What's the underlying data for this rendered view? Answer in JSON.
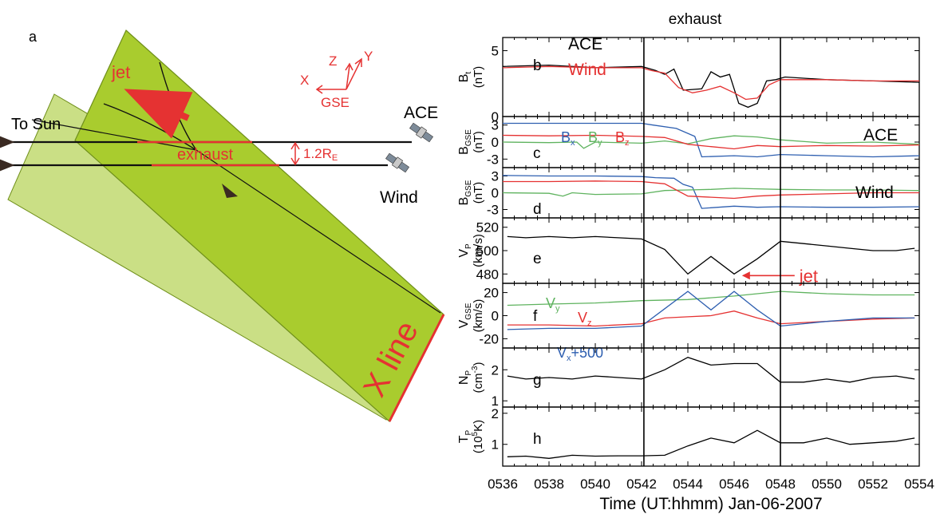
{
  "colors": {
    "black": "#000000",
    "red": "#e53232",
    "green": "#5fb35f",
    "blue": "#2e5fb0",
    "sheet": "#a9cc2e"
  },
  "schematic": {
    "panel_label": "a",
    "jet_label": "jet",
    "to_sun_label": "To Sun",
    "exhaust_label": "exhaust",
    "separation_label": "1.2R",
    "separation_sub": "E",
    "ace_label": "ACE",
    "wind_label": "Wind",
    "xline_label": "X line",
    "gse": {
      "x": "X",
      "y": "Y",
      "z": "Z",
      "name": "GSE"
    },
    "spacecraft_icons": [
      "satellite-icon",
      "satellite-icon"
    ]
  },
  "chart_data": {
    "type": "line",
    "title": "exhaust",
    "xlabel": "Time (UT:hhmm) Jan-06-2007",
    "x_ticks": [
      "0536",
      "0538",
      "0540",
      "0542",
      "0544",
      "0546",
      "0548",
      "0550",
      "0552",
      "0554"
    ],
    "xlim": [
      "05:36",
      "05:54"
    ],
    "exhaust_boundaries": [
      "05:42.1",
      "05:48.0"
    ],
    "panels": [
      {
        "id": "b",
        "ylabel": "B",
        "ylabel_sub": "t",
        "unit": "(nT)",
        "ylim": [
          0,
          6
        ],
        "yticks": [
          "5",
          "0"
        ],
        "labels": [
          "ACE",
          "Wind"
        ],
        "series": [
          {
            "name": "ACE",
            "color": "#000000",
            "x": [
              36.0,
              38.0,
              40.0,
              42.0,
              42.2,
              42.6,
              43.0,
              43.4,
              43.8,
              44.6,
              45.0,
              45.4,
              45.8,
              46.2,
              46.6,
              47.0,
              47.4,
              47.8,
              48.2,
              50.0,
              52.0,
              54.0
            ],
            "values": [
              3.8,
              3.9,
              3.7,
              3.8,
              3.7,
              3.5,
              3.2,
              3.6,
              2.0,
              2.1,
              3.4,
              3.0,
              3.2,
              1.0,
              0.7,
              1.0,
              2.7,
              2.8,
              3.0,
              2.8,
              2.7,
              2.6
            ]
          },
          {
            "name": "Wind",
            "color": "#e53232",
            "x": [
              36.0,
              38.0,
              40.0,
              42.0,
              42.4,
              43.0,
              43.6,
              44.2,
              44.8,
              45.4,
              46.0,
              46.5,
              47.0,
              47.5,
              48.0,
              50.0,
              52.0,
              54.0
            ],
            "values": [
              3.7,
              3.8,
              3.7,
              3.7,
              3.5,
              3.3,
              2.2,
              1.8,
              2.0,
              2.3,
              1.8,
              1.3,
              1.4,
              2.4,
              2.8,
              2.8,
              2.7,
              2.7
            ]
          }
        ]
      },
      {
        "id": "c",
        "ylabel": "B",
        "ylabel_sub": "GSE",
        "unit": "(nT)",
        "ylim": [
          -4.5,
          4.5
        ],
        "yticks": [
          "3",
          "0",
          "-3"
        ],
        "labels": [
          "ACE"
        ],
        "legend": [
          {
            "text": "B",
            "sub": "x",
            "color": "#2e5fb0"
          },
          {
            "text": "B",
            "sub": "y",
            "color": "#5fb35f"
          },
          {
            "text": "B",
            "sub": "z",
            "color": "#e53232"
          }
        ],
        "series": [
          {
            "name": "Bx",
            "color": "#2e5fb0",
            "x": [
              36,
              38,
              40,
              42,
              42.5,
              43.5,
              44.3,
              44.6,
              46,
              47,
              48,
              50,
              52,
              54
            ],
            "values": [
              3.3,
              3.3,
              3.3,
              3.3,
              3.0,
              2.4,
              1.0,
              -2.6,
              -2.4,
              -2.6,
              -2.2,
              -2.4,
              -2.6,
              -2.4
            ]
          },
          {
            "name": "By",
            "color": "#5fb35f",
            "x": [
              36,
              38,
              39.2,
              39.5,
              40,
              42,
              43,
              44,
              45,
              46,
              47,
              48,
              50,
              52,
              54
            ],
            "values": [
              0.0,
              -0.1,
              0.0,
              -1.1,
              0.0,
              -0.2,
              0.2,
              -0.3,
              0.6,
              1.1,
              0.9,
              0.4,
              -0.2,
              0.0,
              -0.4
            ]
          },
          {
            "name": "Bz",
            "color": "#e53232",
            "x": [
              36,
              38,
              40,
              42,
              43,
              44,
              45,
              46,
              47,
              48,
              50,
              52,
              54
            ],
            "values": [
              1.2,
              1.1,
              1.2,
              1.0,
              0.8,
              -0.4,
              -0.8,
              -1.2,
              -0.6,
              -0.8,
              -0.6,
              -0.7,
              -0.5
            ]
          }
        ]
      },
      {
        "id": "d",
        "ylabel": "B",
        "ylabel_sub": "GSE",
        "unit": "(nT)",
        "ylim": [
          -4.5,
          4.5
        ],
        "yticks": [
          "3",
          "0",
          "-3"
        ],
        "labels": [
          "Wind"
        ],
        "series": [
          {
            "name": "Bx",
            "color": "#2e5fb0",
            "x": [
              36,
              38,
              40,
              42,
              42.6,
              43.4,
              43.8,
              44.2,
              44.6,
              46,
              47,
              48,
              50,
              52,
              54
            ],
            "values": [
              3.1,
              3.0,
              3.0,
              2.9,
              2.7,
              2.6,
              1.5,
              1.0,
              -2.8,
              -2.4,
              -2.6,
              -2.5,
              -2.6,
              -2.6,
              -2.5
            ]
          },
          {
            "name": "By",
            "color": "#5fb35f",
            "x": [
              36,
              38,
              38.6,
              39,
              40,
              42,
              43,
              44,
              45,
              46,
              47,
              48,
              50,
              52,
              54
            ],
            "values": [
              0.0,
              -0.1,
              -0.6,
              0.0,
              -0.3,
              -0.2,
              0.4,
              0.5,
              0.6,
              0.8,
              0.7,
              0.6,
              0.5,
              0.5,
              0.4
            ]
          },
          {
            "name": "Bz",
            "color": "#e53232",
            "x": [
              36,
              38,
              40,
              42,
              43,
              44,
              45,
              46,
              47,
              48,
              50,
              52,
              54
            ],
            "values": [
              2.0,
              2.0,
              2.1,
              2.0,
              1.6,
              -0.6,
              -0.8,
              -1.0,
              -0.6,
              -0.4,
              -0.2,
              0.0,
              0.0
            ]
          }
        ]
      },
      {
        "id": "e",
        "ylabel": "V",
        "ylabel_sub": "P",
        "unit": "(km/s)",
        "ylim": [
          472,
          528
        ],
        "yticks": [
          "520",
          "500",
          "480"
        ],
        "annotation": "jet",
        "annotation_at": [
          46.2,
          480
        ],
        "series": [
          {
            "name": "Vp",
            "color": "#000000",
            "x": [
              36.2,
              37.0,
              38.0,
              39.0,
              40.0,
              41.0,
              42.0,
              43.0,
              44.0,
              45.0,
              46.0,
              47.0,
              48.0,
              49.0,
              50.0,
              51.0,
              52.0,
              53.0,
              53.8
            ],
            "values": [
              512,
              511,
              512,
              511,
              512,
              511,
              510,
              501,
              480,
              495,
              480,
              493,
              508,
              506,
              504,
              502,
              500,
              500,
              502
            ]
          }
        ]
      },
      {
        "id": "f",
        "ylabel": "V",
        "ylabel_sub": "GSE",
        "unit": "(km/s)",
        "ylim": [
          -28,
          28
        ],
        "yticks": [
          "20",
          "0",
          "-20"
        ],
        "legend": [
          {
            "text": "V",
            "sub": "y",
            "color": "#5fb35f"
          },
          {
            "text": "V",
            "sub": "z",
            "color": "#e53232"
          },
          {
            "text": "V",
            "sub": "x",
            "suffix": "+500",
            "color": "#2e5fb0"
          }
        ],
        "series": [
          {
            "name": "Vy",
            "color": "#5fb35f",
            "x": [
              36.2,
              38,
              40,
              42,
              44,
              46,
              48,
              50,
              52,
              53.8
            ],
            "values": [
              9,
              10,
              11,
              13,
              14,
              17,
              21,
              19,
              18,
              18
            ]
          },
          {
            "name": "Vz",
            "color": "#e53232",
            "x": [
              36.2,
              38,
              40,
              42,
              43,
              44,
              45,
              46,
              47,
              48,
              50,
              52,
              53.8
            ],
            "values": [
              -8,
              -8,
              -9,
              -7,
              -2,
              -1,
              0,
              4,
              -2,
              -7,
              -5,
              -3,
              -2
            ]
          },
          {
            "name": "Vx+500",
            "color": "#2e5fb0",
            "x": [
              36.2,
              38,
              40,
              42,
              43,
              44,
              45,
              46,
              47,
              48,
              50,
              52,
              53.8
            ],
            "values": [
              -12,
              -11,
              -11,
              -9,
              6,
              21,
              5,
              21,
              5,
              -9,
              -5,
              -2,
              -2
            ]
          }
        ]
      },
      {
        "id": "g",
        "ylabel": "N",
        "ylabel_sub": "P",
        "unit": "(cm",
        "unit_sup": "-3",
        "unit_end": ")",
        "ylim": [
          0.8,
          2.7
        ],
        "yticks": [
          "2",
          "1"
        ],
        "series": [
          {
            "name": "Np",
            "color": "#000000",
            "x": [
              36.2,
              37,
              38,
              39,
              40,
              41,
              42,
              43,
              44,
              45,
              46,
              47,
              48,
              49,
              50,
              51,
              52,
              53,
              53.8
            ],
            "values": [
              1.8,
              1.7,
              1.75,
              1.7,
              1.8,
              1.75,
              1.7,
              2.0,
              2.4,
              2.15,
              2.2,
              2.2,
              1.6,
              1.6,
              1.7,
              1.6,
              1.75,
              1.8,
              1.7
            ]
          }
        ]
      },
      {
        "id": "h",
        "ylabel": "T",
        "ylabel_sub": "P",
        "unit": "(10",
        "unit_sup": "5",
        "unit_end": "K)",
        "ylim": [
          0.3,
          2.2
        ],
        "yticks": [
          "2",
          "1"
        ],
        "series": [
          {
            "name": "Tp",
            "color": "#000000",
            "x": [
              36.2,
              37,
              38,
              39,
              40,
              41,
              42,
              43,
              44,
              45,
              46,
              47,
              48,
              49,
              50,
              51,
              52,
              53,
              53.8
            ],
            "values": [
              0.6,
              0.62,
              0.55,
              0.65,
              0.62,
              0.63,
              0.63,
              0.65,
              0.95,
              1.2,
              1.05,
              1.45,
              1.05,
              1.05,
              1.2,
              1.0,
              1.05,
              1.1,
              1.2
            ]
          }
        ]
      }
    ]
  }
}
